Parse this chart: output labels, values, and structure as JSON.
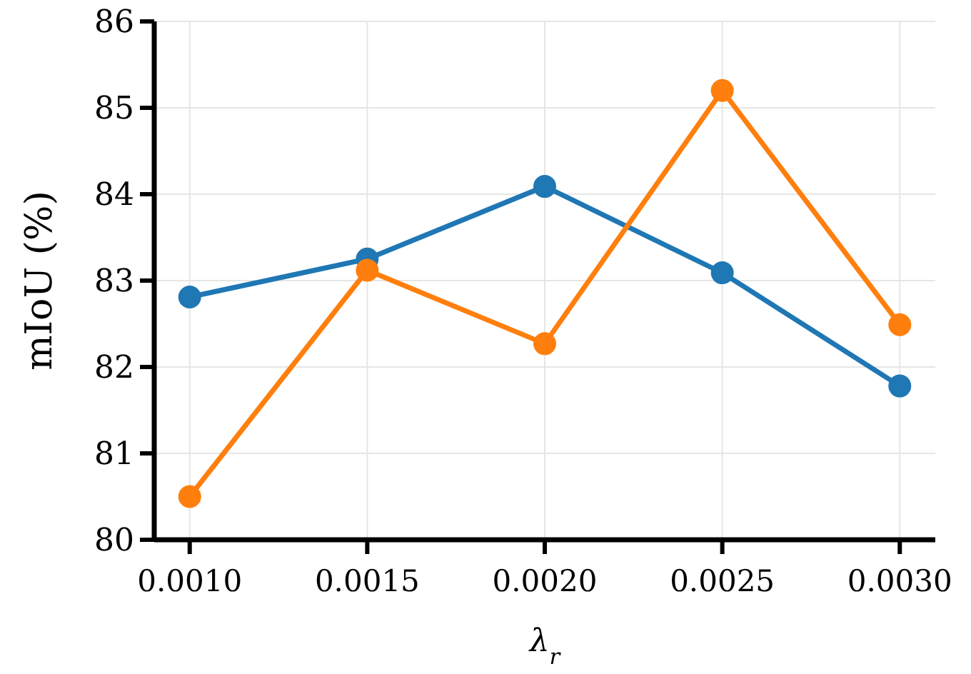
{
  "chart_data": {
    "type": "line",
    "xlabel": "λ$_{r}$",
    "ylabel": "mIoU (%)",
    "x": [
      0.001,
      0.0015,
      0.002,
      0.0025,
      0.003
    ],
    "series": [
      {
        "color": "#1f77b4",
        "values": [
          82.81,
          83.25,
          84.09,
          83.09,
          81.78
        ]
      },
      {
        "color": "#ff7f0e",
        "values": [
          80.5,
          83.12,
          82.27,
          85.2,
          82.49
        ]
      }
    ],
    "xlim": [
      0.0009,
      0.0031
    ],
    "xticks": [
      {
        "value": 0.001,
        "label": "0.0010"
      },
      {
        "value": 0.0015,
        "label": "0.0015"
      },
      {
        "value": 0.002,
        "label": "0.0020"
      },
      {
        "value": 0.0025,
        "label": "0.0025"
      },
      {
        "value": 0.003,
        "label": "0.0030"
      }
    ],
    "ylim": [
      80,
      86
    ],
    "yticks": [
      80,
      81,
      82,
      83,
      84,
      85,
      86
    ],
    "grid": true,
    "marker": "circle",
    "line_style": "solid"
  }
}
